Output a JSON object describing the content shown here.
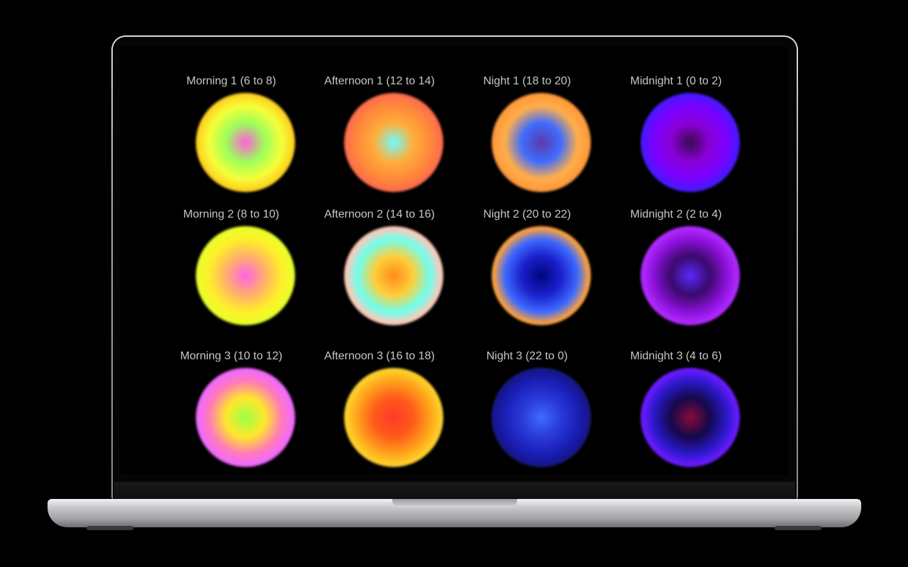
{
  "device": "laptop",
  "orbs": [
    {
      "label": "Morning 1 (6 to 8)",
      "colors": [
        "#ff5fd9",
        "#9cff5a",
        "#f4ff3a",
        "#ffd21f",
        "#5a3a18"
      ]
    },
    {
      "label": "Afternoon 1 (12 to 14)",
      "colors": [
        "#6ffcff",
        "#ffae3a",
        "#ff8a3a",
        "#ff6e4c",
        "#4a2a2c"
      ]
    },
    {
      "label": "Night 1 (18 to 20)",
      "colors": [
        "#5a3aa8",
        "#3f6cff",
        "#ffae4a",
        "#ff9a3a",
        "#0a0a4a"
      ]
    },
    {
      "label": "Midnight 1 (0 to 2)",
      "colors": [
        "#3a0a4a",
        "#8a00d8",
        "#7a00ff",
        "#4a18ff",
        "#0a0640"
      ]
    },
    {
      "label": "Morning 2 (8 to 10)",
      "colors": [
        "#ff62e6",
        "#ffb06a",
        "#ffee2a",
        "#e9ff2a",
        "#2c4a08"
      ]
    },
    {
      "label": "Afternoon 2 (14 to 16)",
      "colors": [
        "#ff8a1a",
        "#ffcf3a",
        "#6effef",
        "#ffc9b8",
        "#3a1e2a"
      ]
    },
    {
      "label": "Night 2 (20 to 22)",
      "colors": [
        "#00067a",
        "#1a1fcc",
        "#3e6aff",
        "#ffa23a",
        "#1a0a30"
      ]
    },
    {
      "label": "Midnight 2 (2 to 4)",
      "colors": [
        "#5a28ff",
        "#3a0a6a",
        "#8a10d8",
        "#b02aff",
        "#280a4a"
      ]
    },
    {
      "label": "Morning 3 (10 to 12)",
      "colors": [
        "#9cff4a",
        "#ffe82a",
        "#ff7ab8",
        "#f06aff",
        "#4a2228"
      ]
    },
    {
      "label": "Afternoon 3 (16 to 18)",
      "colors": [
        "#ff3a2a",
        "#ff5a1a",
        "#ffa21a",
        "#ffd22a",
        "#1e4a4a"
      ]
    },
    {
      "label": "Night 3 (22 to 0)",
      "colors": [
        "#3f6cff",
        "#2a3ad8",
        "#1a1fb8",
        "#14168a",
        "#8a5a3a"
      ]
    },
    {
      "label": "Midnight 3 (4 to 6)",
      "colors": [
        "#8a0a3a",
        "#14094a",
        "#2a18c8",
        "#6a1aff",
        "#3a0a50"
      ]
    }
  ]
}
